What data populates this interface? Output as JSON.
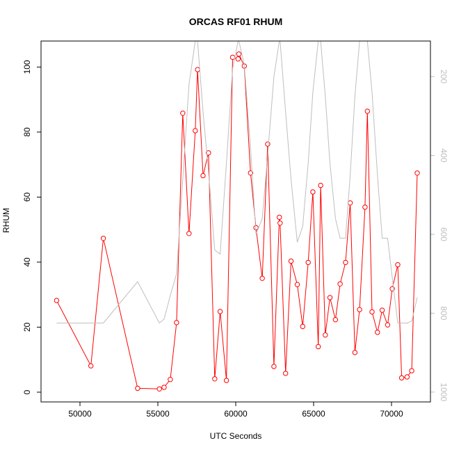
{
  "chart_data": {
    "type": "line",
    "title": "ORCAS RF01 RHUM",
    "xlabel": "UTC Seconds",
    "ylabel": "RHUM",
    "xlim": [
      47500,
      72500
    ],
    "ylim": [
      -3,
      108
    ],
    "y2lim": [
      1025,
      110
    ],
    "y2_reversed": true,
    "x_ticks": [
      50000,
      55000,
      60000,
      65000,
      70000
    ],
    "y_ticks": [
      0,
      20,
      40,
      60,
      80,
      100
    ],
    "y2_ticks": [
      200,
      400,
      600,
      800,
      1000
    ],
    "grid": false,
    "legend": "none",
    "series": [
      {
        "axis": "left",
        "color": "#ff0000",
        "marker": "circle",
        "x": [
          48500,
          50700,
          51500,
          53700,
          55100,
          55400,
          55800,
          56200,
          56600,
          57000,
          57400,
          57550,
          57900,
          58250,
          58650,
          59000,
          59400,
          59800,
          60150,
          60200,
          60550,
          60950,
          61300,
          61700,
          62050,
          62450,
          62800,
          62850,
          63200,
          63550,
          63950,
          64300,
          64650,
          64950,
          65300,
          65450,
          65750,
          66050,
          66400,
          66700,
          67050,
          67350,
          67650,
          67950,
          68300,
          68450,
          68750,
          69100,
          69400,
          69750,
          70050,
          70400,
          70650,
          71000,
          71300,
          71650
        ],
        "y": [
          28.2,
          8.1,
          47.3,
          1.2,
          1.0,
          1.5,
          3.9,
          21.4,
          85.8,
          48.8,
          80.4,
          99.2,
          66.6,
          73.6,
          4.1,
          24.8,
          3.6,
          103.0,
          102.5,
          104.0,
          100.3,
          67.4,
          50.6,
          35.0,
          76.3,
          7.9,
          53.8,
          52.0,
          5.8,
          40.3,
          33.1,
          20.2,
          39.9,
          61.6,
          14.0,
          63.6,
          17.6,
          29.1,
          22.3,
          33.3,
          39.9,
          58.2,
          12.2,
          25.4,
          56.9,
          86.4,
          24.7,
          18.4,
          25.2,
          20.7,
          31.8,
          39.2,
          4.4,
          4.7,
          6.6,
          67.4
        ]
      },
      {
        "axis": "right",
        "color": "#bebebe",
        "marker": "none",
        "x": [
          48500,
          50700,
          51500,
          53700,
          55100,
          55400,
          55800,
          56200,
          56600,
          57000,
          57400,
          57550,
          57900,
          58250,
          58650,
          59000,
          59400,
          59800,
          60150,
          60200,
          60550,
          60950,
          61300,
          61700,
          62050,
          62450,
          62800,
          62850,
          63200,
          63550,
          63950,
          64300,
          64650,
          64950,
          65300,
          65450,
          65750,
          66050,
          66400,
          66700,
          67050,
          67350,
          67650,
          67950,
          68300,
          68450,
          68750,
          69100,
          69400,
          69750,
          70050,
          70400,
          70650,
          71000,
          71300,
          71650
        ],
        "y": [
          825,
          825,
          825,
          720,
          825,
          815,
          755,
          700,
          460,
          220,
          110,
          110,
          290,
          440,
          640,
          650,
          420,
          180,
          110,
          110,
          170,
          380,
          600,
          560,
          400,
          200,
          110,
          110,
          290,
          460,
          620,
          580,
          420,
          240,
          110,
          110,
          250,
          420,
          560,
          610,
          610,
          450,
          250,
          110,
          110,
          110,
          240,
          450,
          610,
          610,
          710,
          825,
          825,
          825,
          820,
          760
        ]
      }
    ]
  }
}
